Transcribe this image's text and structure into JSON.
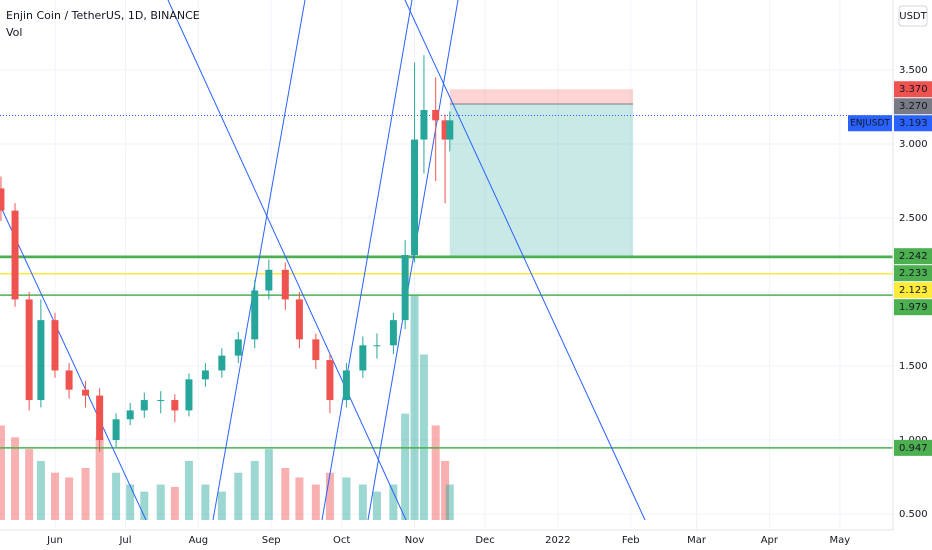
{
  "chart_data": {
    "type": "candlestick",
    "title": "Enjin Coin / TetherUS, 1D, BINANCE",
    "volume_label": "Vol",
    "currency": "USDT",
    "symbol": "ENJUSDT",
    "x": [
      8,
      14,
      20,
      25,
      31,
      37,
      44,
      50,
      57,
      63,
      69,
      76,
      82,
      88,
      95,
      102,
      109,
      116,
      122,
      129,
      135,
      142,
      148,
      155,
      162,
      168,
      175,
      180,
      184,
      188,
      193,
      197,
      199
    ],
    "open": [
      2.7,
      2.55,
      1.95,
      1.27,
      1.81,
      1.47,
      1.34,
      1.3,
      1.0,
      1.14,
      1.2,
      1.27,
      1.27,
      1.2,
      1.41,
      1.47,
      1.57,
      1.68,
      2.01,
      2.15,
      1.95,
      1.68,
      1.54,
      1.27,
      1.47,
      1.64,
      1.64,
      1.81,
      2.25,
      3.03,
      3.23,
      3.16,
      3.03
    ],
    "high": [
      2.78,
      2.6,
      2.0,
      1.95,
      1.86,
      1.52,
      1.4,
      1.35,
      1.18,
      1.25,
      1.32,
      1.33,
      1.31,
      1.45,
      1.52,
      1.62,
      1.73,
      2.08,
      2.22,
      2.2,
      2.0,
      1.72,
      1.58,
      1.52,
      1.7,
      1.72,
      1.86,
      2.35,
      3.55,
      3.6,
      3.45,
      3.2,
      3.22
    ],
    "low": [
      2.48,
      1.9,
      1.2,
      1.22,
      1.42,
      1.28,
      1.22,
      0.92,
      0.95,
      1.1,
      1.15,
      1.18,
      1.12,
      1.16,
      1.36,
      1.42,
      1.52,
      1.62,
      1.95,
      1.88,
      1.62,
      1.48,
      1.18,
      1.22,
      1.42,
      1.55,
      1.58,
      1.75,
      2.2,
      2.8,
      2.75,
      2.6,
      2.95
    ],
    "close": [
      2.55,
      1.95,
      1.27,
      1.81,
      1.47,
      1.34,
      1.3,
      1.0,
      1.14,
      1.2,
      1.27,
      1.27,
      1.2,
      1.41,
      1.47,
      1.57,
      1.68,
      2.01,
      2.15,
      1.95,
      1.68,
      1.54,
      1.27,
      1.47,
      1.64,
      1.64,
      1.81,
      2.25,
      3.03,
      3.23,
      3.16,
      3.03,
      3.16
    ],
    "volume": [
      40,
      35,
      30,
      25,
      20,
      18,
      22,
      35,
      20,
      15,
      12,
      15,
      14,
      25,
      15,
      12,
      20,
      25,
      30,
      22,
      18,
      15,
      20,
      18,
      15,
      12,
      15,
      45,
      95,
      70,
      40,
      25,
      15
    ],
    "volume_lim": [
      0,
      220
    ],
    "up_color": "#26a69a",
    "down_color": "#ef5350",
    "xlim": [
      7.6,
      387.6
    ],
    "xticks": [
      {
        "value": 31,
        "label": "Jun"
      },
      {
        "value": 61,
        "label": "Jul"
      },
      {
        "value": 92,
        "label": "Aug"
      },
      {
        "value": 123,
        "label": "Sep"
      },
      {
        "value": 153,
        "label": "Oct"
      },
      {
        "value": 184,
        "label": "Nov"
      },
      {
        "value": 214,
        "label": "Dec"
      },
      {
        "value": 245,
        "label": "2022"
      },
      {
        "value": 276,
        "label": "Feb"
      },
      {
        "value": 304,
        "label": "Mar"
      },
      {
        "value": 335,
        "label": "Apr"
      },
      {
        "value": 365,
        "label": "May"
      }
    ],
    "ylim": [
      0.392,
      3.973
    ],
    "yticks": [
      {
        "value": 0.5,
        "label": "0.500"
      },
      {
        "value": 1,
        "label": "1.000"
      },
      {
        "value": 1.5,
        "label": "1.500"
      },
      {
        "value": 2,
        "label": "2.000"
      },
      {
        "value": 2.5,
        "label": "2.500"
      },
      {
        "value": 3,
        "label": "3.000"
      },
      {
        "value": 3.5,
        "label": "3.500"
      }
    ],
    "last_price": {
      "value": 3.193,
      "label": "3.193",
      "color": "#2962ff"
    },
    "position": {
      "x": [
        199,
        277
      ],
      "stop": {
        "value": 3.37,
        "label": "3.370",
        "color": "#ef5350"
      },
      "entry": {
        "value": 3.27,
        "label": "3.270",
        "color": "#787b86"
      },
      "target": {
        "value": 2.242,
        "label": "2.242",
        "color": "#4caf50"
      }
    },
    "levels": [
      {
        "value": 2.233,
        "label": "2.233",
        "color": "#4caf50"
      },
      {
        "value": 2.123,
        "label": "2.123",
        "color": "#ffeb3b"
      },
      {
        "value": 1.979,
        "label": "1.979",
        "color": "#4caf50"
      },
      {
        "value": 0.947,
        "label": "0.947",
        "color": "#4caf50"
      }
    ]
  }
}
